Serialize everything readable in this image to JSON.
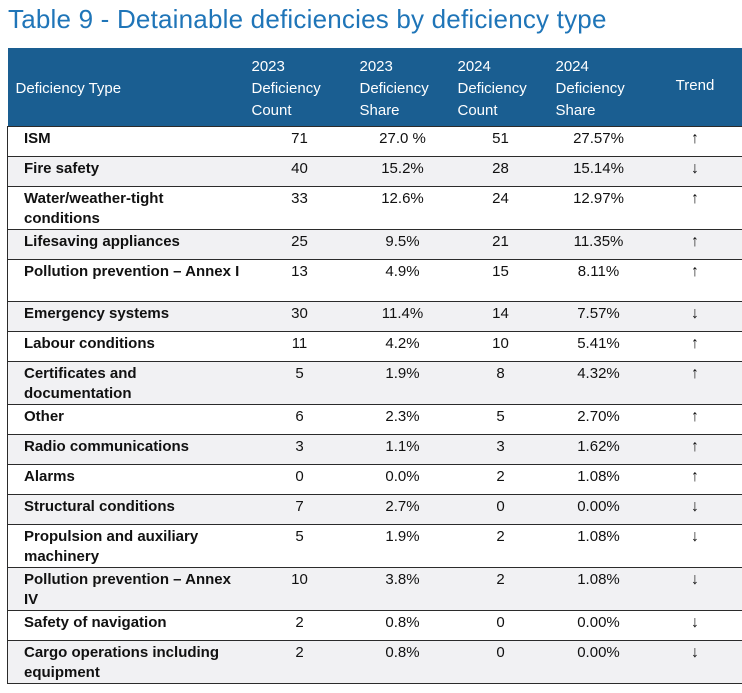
{
  "title": "Table 9 - Detainable deficiencies by deficiency type",
  "headers": {
    "type": "Deficiency Type",
    "c2023_count": [
      "2023",
      "Deficiency",
      "Count"
    ],
    "c2023_share": [
      "2023",
      "Deficiency",
      "Share"
    ],
    "c2024_count": [
      "2024",
      "Deficiency",
      "Count"
    ],
    "c2024_share": [
      "2024",
      "Deficiency",
      "Share"
    ],
    "trend": "Trend"
  },
  "rows": [
    {
      "type": "ISM",
      "c23": "71",
      "s23": "27.0 %",
      "c24": "51",
      "s24": "27.57%",
      "trend": "↑",
      "lines": 1
    },
    {
      "type": "Fire safety",
      "c23": "40",
      "s23": "15.2%",
      "c24": "28",
      "s24": "15.14%",
      "trend": "↓",
      "lines": 1
    },
    {
      "type": "Water/weather-tight conditions",
      "c23": "33",
      "s23": "12.6%",
      "c24": "24",
      "s24": "12.97%",
      "trend": "↑",
      "lines": 2
    },
    {
      "type": "Lifesaving appliances",
      "c23": "25",
      "s23": "9.5%",
      "c24": "21",
      "s24": "11.35%",
      "trend": "↑",
      "lines": 1
    },
    {
      "type": "Pollution prevention – Annex I",
      "c23": "13",
      "s23": "4.9%",
      "c24": "15",
      "s24": "8.11%",
      "trend": "↑",
      "lines": 2
    },
    {
      "type": "Emergency systems",
      "c23": "30",
      "s23": "11.4%",
      "c24": "14",
      "s24": "7.57%",
      "trend": "↓",
      "lines": 1
    },
    {
      "type": "Labour conditions",
      "c23": "11",
      "s23": "4.2%",
      "c24": "10",
      "s24": "5.41%",
      "trend": "↑",
      "lines": 1
    },
    {
      "type": "Certificates and documentation",
      "c23": "5",
      "s23": "1.9%",
      "c24": "8",
      "s24": "4.32%",
      "trend": "↑",
      "lines": 2
    },
    {
      "type": "Other",
      "c23": "6",
      "s23": "2.3%",
      "c24": "5",
      "s24": "2.70%",
      "trend": "↑",
      "lines": 1
    },
    {
      "type": "Radio communications",
      "c23": "3",
      "s23": "1.1%",
      "c24": "3",
      "s24": "1.62%",
      "trend": "↑",
      "lines": 1
    },
    {
      "type": "Alarms",
      "c23": "0",
      "s23": "0.0%",
      "c24": "2",
      "s24": "1.08%",
      "trend": "↑",
      "lines": 1
    },
    {
      "type": "Structural conditions",
      "c23": "7",
      "s23": "2.7%",
      "c24": "0",
      "s24": "0.00%",
      "trend": "↓",
      "lines": 1
    },
    {
      "type": "Propulsion and auxiliary machinery",
      "c23": "5",
      "s23": "1.9%",
      "c24": "2",
      "s24": "1.08%",
      "trend": "↓",
      "lines": 2
    },
    {
      "type": "Pollution prevention – Annex IV",
      "c23": "10",
      "s23": "3.8%",
      "c24": "2",
      "s24": "1.08%",
      "trend": "↓",
      "lines": 2
    },
    {
      "type": "Safety of navigation",
      "c23": "2",
      "s23": "0.8%",
      "c24": "0",
      "s24": "0.00%",
      "trend": "↓",
      "lines": 1
    },
    {
      "type": "Cargo operations including equipment",
      "c23": "2",
      "s23": "0.8%",
      "c24": "0",
      "s24": "0.00%",
      "trend": "↓",
      "lines": 2
    }
  ],
  "colors": {
    "title": "#1f75b8",
    "header_bg": "#1a5e91",
    "row_shade": "#f1f1f3"
  }
}
